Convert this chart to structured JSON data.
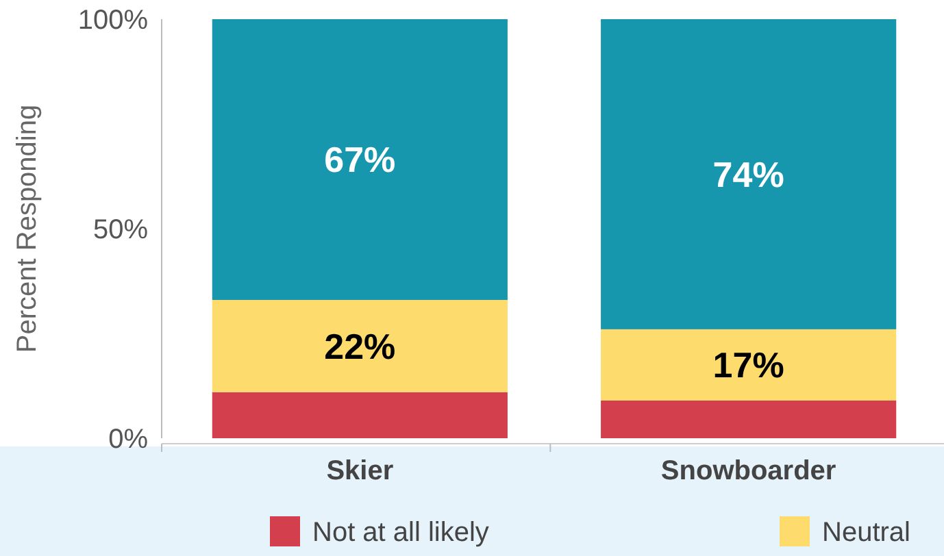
{
  "chart_data": {
    "type": "bar",
    "stacked": true,
    "ylabel": "Percent Responding",
    "categories": [
      "Skier",
      "Snowboarder"
    ],
    "ylim": [
      0,
      100
    ],
    "yticks": [
      {
        "value": 0,
        "label": "0%"
      },
      {
        "value": 50,
        "label": "50%"
      },
      {
        "value": 100,
        "label": "100%"
      }
    ],
    "series": [
      {
        "name": "Not at all likely",
        "color": "#d43f4d",
        "values": [
          11,
          9
        ],
        "value_labels": [
          null,
          null
        ]
      },
      {
        "name": "Neutral",
        "color": "#fddb6d",
        "values": [
          22,
          17
        ],
        "value_labels": [
          "22%",
          "17%"
        ]
      },
      {
        "color": "#1797ae",
        "values": [
          67,
          74
        ],
        "value_labels": [
          "67%",
          "74%"
        ]
      }
    ],
    "legend": "bottom",
    "grid": false
  }
}
